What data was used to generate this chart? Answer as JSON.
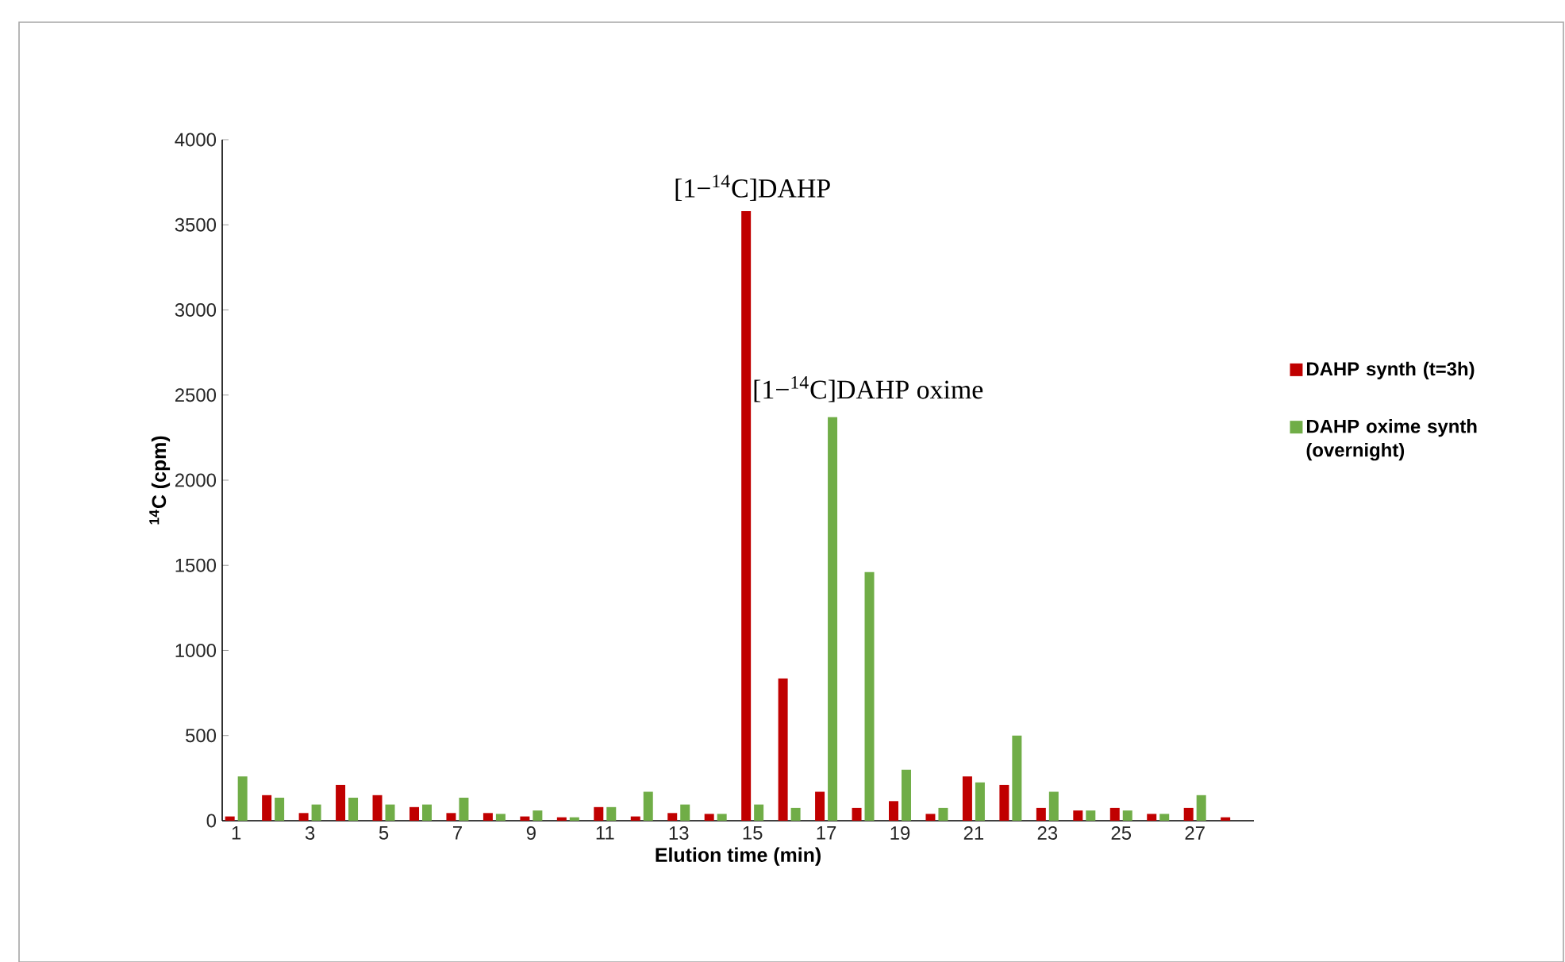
{
  "chart_data": {
    "type": "bar",
    "xlabel": "Elution time (min)",
    "ylabel": "$^{14}$C (cpm)",
    "categories": [
      "1",
      null,
      "3",
      null,
      "5",
      null,
      "7",
      null,
      "9",
      null,
      "11",
      null,
      "13",
      null,
      "15",
      null,
      "17",
      null,
      "19",
      null,
      "21",
      null,
      "23",
      null,
      "25",
      null,
      "27",
      null
    ],
    "series": [
      {
        "name": "DAHP synth (t=3h)",
        "color": "#c00000",
        "values": [
          25,
          150,
          45,
          210,
          150,
          80,
          45,
          45,
          25,
          20,
          80,
          25,
          45,
          40,
          3580,
          835,
          170,
          75,
          115,
          40,
          260,
          210,
          75,
          60,
          75,
          40,
          75,
          20
        ]
      },
      {
        "name": "DAHP oxime synth (overnight)",
        "color": "#70ad47",
        "values": [
          260,
          135,
          95,
          135,
          95,
          95,
          135,
          40,
          60,
          20,
          80,
          170,
          95,
          40,
          95,
          75,
          2370,
          1460,
          300,
          75,
          225,
          500,
          170,
          60,
          60,
          40,
          150,
          null
        ]
      }
    ],
    "ylim": [
      0,
      4000
    ],
    "yticks": [
      0,
      500,
      1000,
      1500,
      2000,
      2500,
      3000,
      3500,
      4000
    ],
    "grid": false,
    "legend": "right",
    "annotations": [
      {
        "text": "[1−$^{14}$C]DAHP",
        "x": "15",
        "y": 3580
      },
      {
        "text": "[1−$^{14}$C]DAHP oxime",
        "x": "17",
        "y": 2370
      }
    ]
  }
}
